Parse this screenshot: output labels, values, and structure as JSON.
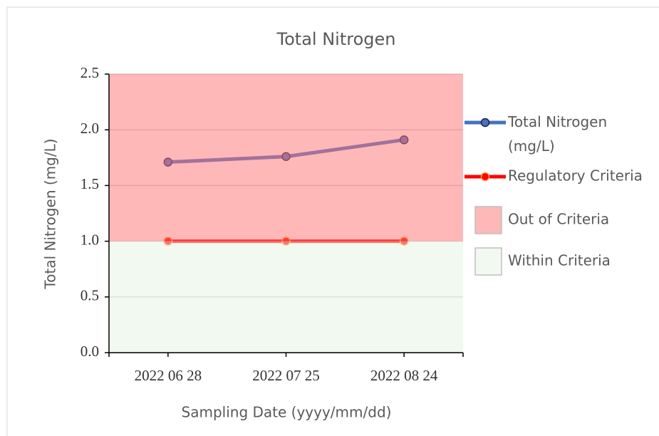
{
  "chart_data": {
    "type": "line",
    "title": "Total Nitrogen",
    "x_label": "Sampling Date (yyyy/mm/dd)",
    "y_label": "Total Nitrogen (mg/L)",
    "categories": [
      "2022 06 28",
      "2022 07 25",
      "2022 08 24"
    ],
    "series": [
      {
        "name": "Total Nitrogen (mg/L)",
        "color": "#4472c4",
        "marker_edgecolor": "#1f1f3a",
        "values": [
          1.71,
          1.76,
          1.91
        ]
      },
      {
        "name": "Regulatory Criteria",
        "color": "#ff0000",
        "marker_edgecolor": "#ff9a2e",
        "values": [
          1.0,
          1.0,
          1.0
        ]
      }
    ],
    "regions": [
      {
        "name": "Out of Criteria",
        "color": "#ff7272",
        "from": 1.0,
        "to": 2.5
      },
      {
        "name": "Within Criteria",
        "color": "#e6f3e1",
        "from": 0,
        "to": 1.0
      }
    ],
    "region_opacity": 0.5,
    "ylim": [
      0,
      2.5
    ],
    "yticks": [
      {
        "value": 0,
        "label": "0.0"
      },
      0.5,
      {
        "value": 1,
        "label": "1.0"
      },
      1.5,
      {
        "value": 2,
        "label": "2.0"
      },
      2.5
    ],
    "grid": true,
    "legend": "right"
  }
}
